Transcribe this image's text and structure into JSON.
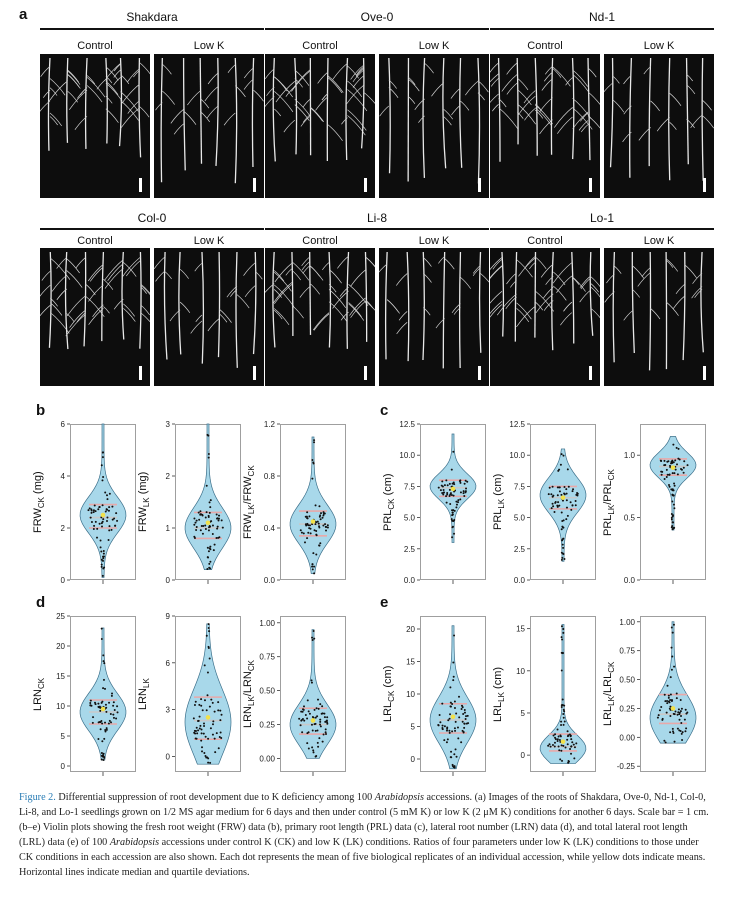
{
  "panel_a": {
    "letter": "a",
    "groups": [
      {
        "name": "Shakdara",
        "labels": [
          "Control",
          "Low K"
        ]
      },
      {
        "name": "Ove-0",
        "labels": [
          "Control",
          "Low K"
        ]
      },
      {
        "name": "Nd-1",
        "labels": [
          "Control",
          "Low K"
        ]
      },
      {
        "name": "Col-0",
        "labels": [
          "Control",
          "Low K"
        ]
      },
      {
        "name": "Li-8",
        "labels": [
          "Control",
          "Low K"
        ]
      },
      {
        "name": "Lo-1",
        "labels": [
          "Control",
          "Low K"
        ]
      }
    ]
  },
  "panel_letters": {
    "b": "b",
    "c": "c",
    "d": "d",
    "e": "e"
  },
  "chart_data": [
    {
      "type": "violin",
      "panel": "b",
      "ylabel": "FRW",
      "ylabel_sub": "CK",
      "ylabel_suffix": " (mg)",
      "yticks": [
        "0",
        "2",
        "4",
        "6"
      ],
      "ylim": [
        0,
        6
      ],
      "median": 2.4,
      "mean": 2.5,
      "q1": 2.0,
      "q3": 2.9,
      "range": [
        0.1,
        6.0
      ],
      "bulge": 2.5
    },
    {
      "type": "violin",
      "panel": "b",
      "ylabel": "FRW",
      "ylabel_sub": "LK",
      "ylabel_suffix": " (mg)",
      "yticks": [
        "0",
        "1",
        "2",
        "3"
      ],
      "ylim": [
        0,
        3
      ],
      "median": 1.0,
      "mean": 1.1,
      "q1": 0.8,
      "q3": 1.3,
      "range": [
        0.2,
        3.0
      ],
      "bulge": 1.0
    },
    {
      "type": "violin",
      "panel": "b",
      "ylabel": "FRW",
      "ylabel_sub": "LK",
      "ylabel_mid": "/FRW",
      "ylabel_sub2": "CK",
      "ylabel_suffix": "",
      "yticks": [
        "0.0",
        "0.4",
        "0.8",
        "1.2"
      ],
      "ylim": [
        0,
        1.2
      ],
      "median": 0.43,
      "mean": 0.45,
      "q1": 0.34,
      "q3": 0.53,
      "range": [
        0.05,
        1.1
      ],
      "bulge": 0.43
    },
    {
      "type": "violin",
      "panel": "c",
      "ylabel": "PRL",
      "ylabel_sub": "CK",
      "ylabel_suffix": " (cm)",
      "yticks": [
        "0.0",
        "2.5",
        "5.0",
        "7.5",
        "10.0",
        "12.5"
      ],
      "ylim": [
        0,
        12.5
      ],
      "median": 7.4,
      "mean": 7.3,
      "q1": 6.7,
      "q3": 8.0,
      "range": [
        3.0,
        11.7
      ],
      "bulge": 7.5
    },
    {
      "type": "violin",
      "panel": "c",
      "ylabel": "PRL",
      "ylabel_sub": "LK",
      "ylabel_suffix": " (cm)",
      "yticks": [
        "0.0",
        "2.5",
        "5.0",
        "7.5",
        "10.0",
        "12.5"
      ],
      "ylim": [
        0,
        12.5
      ],
      "median": 6.6,
      "mean": 6.6,
      "q1": 5.7,
      "q3": 7.5,
      "range": [
        1.5,
        10.5
      ],
      "bulge": 6.8
    },
    {
      "type": "violin",
      "panel": "c",
      "ylabel": "PRL",
      "ylabel_sub": "LK",
      "ylabel_mid": "/PRL",
      "ylabel_sub2": "CK",
      "ylabel_suffix": "",
      "yticks": [
        "0.0",
        "0.5",
        "1.0"
      ],
      "ylim": [
        0,
        1.25
      ],
      "median": 0.91,
      "mean": 0.9,
      "q1": 0.84,
      "q3": 0.97,
      "range": [
        0.4,
        1.15
      ],
      "bulge": 0.92
    },
    {
      "type": "violin",
      "panel": "d",
      "ylabel": "LRN",
      "ylabel_sub": "CK",
      "ylabel_suffix": "",
      "yticks": [
        "0",
        "5",
        "10",
        "15",
        "20",
        "25"
      ],
      "ylim": [
        -1,
        25
      ],
      "median": 9,
      "mean": 9.5,
      "q1": 7,
      "q3": 11,
      "range": [
        1,
        23
      ],
      "bulge": 9
    },
    {
      "type": "violin",
      "panel": "d",
      "ylabel": "LRN",
      "ylabel_sub": "LK",
      "ylabel_suffix": "",
      "yticks": [
        "0",
        "3",
        "6",
        "9"
      ],
      "ylim": [
        -1,
        9
      ],
      "median": 2.3,
      "mean": 2.5,
      "q1": 1.1,
      "q3": 3.8,
      "range": [
        -0.5,
        8.5
      ],
      "bulge": 2.2
    },
    {
      "type": "violin",
      "panel": "d",
      "ylabel": "LRN",
      "ylabel_sub": "LK",
      "ylabel_mid": "/LRN",
      "ylabel_sub2": "CK",
      "ylabel_suffix": "",
      "yticks": [
        "0.00",
        "0.25",
        "0.50",
        "0.75",
        "1.00"
      ],
      "ylim": [
        -0.1,
        1.05
      ],
      "median": 0.25,
      "mean": 0.28,
      "q1": 0.18,
      "q3": 0.37,
      "range": [
        0.0,
        0.95
      ],
      "bulge": 0.25
    },
    {
      "type": "violin",
      "panel": "e",
      "ylabel": "LRL",
      "ylabel_sub": "CK",
      "ylabel_suffix": " (cm)",
      "yticks": [
        "0",
        "5",
        "10",
        "15",
        "20"
      ],
      "ylim": [
        -2,
        22
      ],
      "median": 6,
      "mean": 6.5,
      "q1": 4,
      "q3": 8.5,
      "range": [
        -1.5,
        20.5
      ],
      "bulge": 6
    },
    {
      "type": "violin",
      "panel": "e",
      "ylabel": "LRL",
      "ylabel_sub": "LK",
      "ylabel_suffix": " (cm)",
      "yticks": [
        "0",
        "5",
        "10",
        "15"
      ],
      "ylim": [
        -2,
        16.5
      ],
      "median": 1.0,
      "mean": 1.6,
      "q1": 0.5,
      "q3": 2.5,
      "range": [
        -1,
        15.5
      ],
      "bulge": 0.8
    },
    {
      "type": "violin",
      "panel": "e",
      "ylabel": "LRL",
      "ylabel_sub": "LK",
      "ylabel_mid": "/LRL",
      "ylabel_sub2": "CK",
      "ylabel_suffix": "",
      "yticks": [
        "-0.25",
        "0.00",
        "0.25",
        "0.50",
        "0.75",
        "1.00"
      ],
      "ylim": [
        -0.3,
        1.05
      ],
      "median": 0.2,
      "mean": 0.25,
      "q1": 0.12,
      "q3": 0.37,
      "range": [
        -0.05,
        1.0
      ],
      "bulge": 0.17
    }
  ],
  "colors": {
    "violin_fill": "#a8d8ea",
    "violin_stroke": "#3b6f8a",
    "dot": "#111111",
    "mean_dot": "#f2e14a",
    "quartile_line": "#e8a9a9",
    "median_line": "#c9c9c9"
  },
  "caption": {
    "label": "Figure 2.",
    "part1": " Differential suppression of root development due to K deficiency among 100 ",
    "ital1": "Arabidopsis",
    "part2": " accessions. (a) Images of the roots of Shakdara, Ove-0, Nd-1, Col-0, Li-8, and Lo-1 seedlings grown on 1/2 MS agar medium for 6 days and then under control (5 mM K) or low K (2 μM K) conditions for another 6 days. Scale bar = 1 cm. (b–e) Violin plots showing the fresh root weight (FRW) data (b), primary root length (PRL) data (c), lateral root number (LRN) data (d), and total lateral root length (LRL) data (e) of 100 ",
    "ital2": "Arabidopsis",
    "part3": " accessions under control K (CK) and low K (LK) conditions. Ratios of four parameters under low K (LK) conditions to those under CK conditions in each accession are also shown. Each dot represents the mean of five biological replicates of an individual accession, while yellow dots indicate means. Horizontal lines indicate median and quartile deviations."
  }
}
